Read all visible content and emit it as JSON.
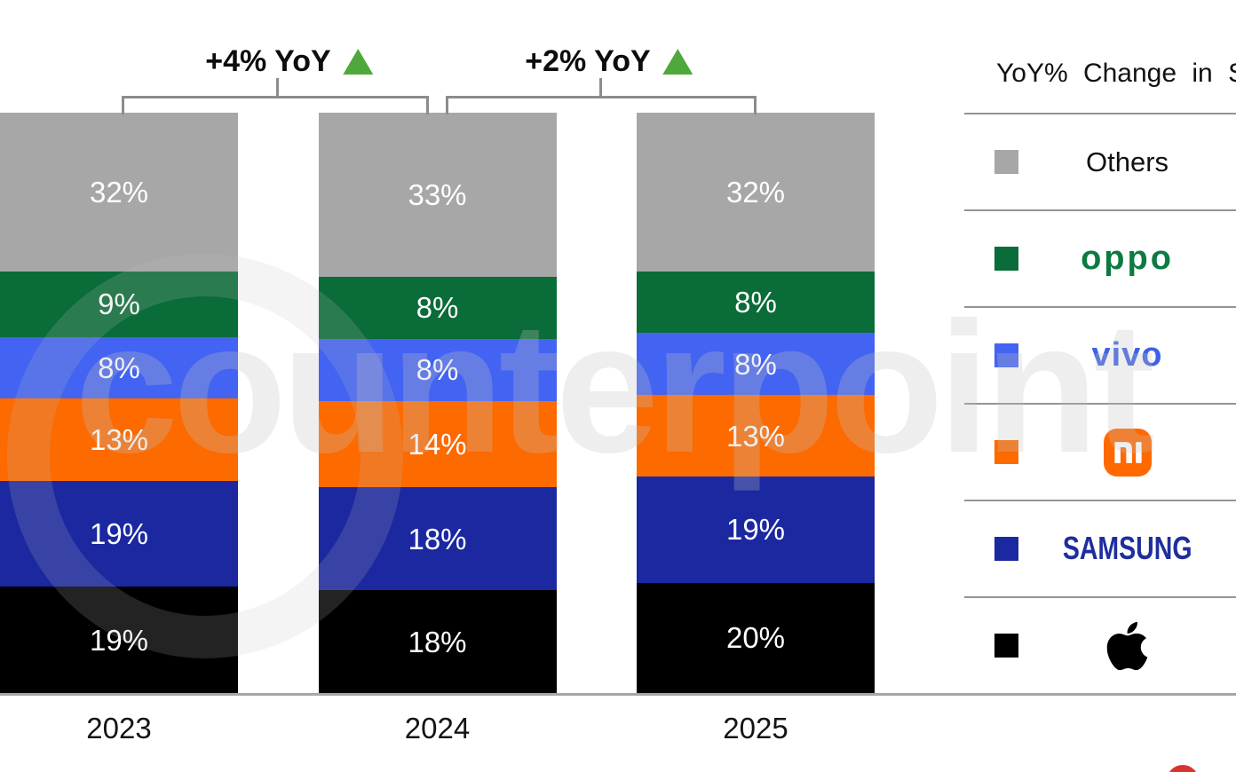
{
  "chart_data": {
    "type": "bar",
    "subtype": "stacked-100",
    "title": "",
    "categories": [
      "2023",
      "2024",
      "2025"
    ],
    "series": [
      {
        "name": "Apple",
        "color": "#000000",
        "values": [
          19,
          18,
          20
        ]
      },
      {
        "name": "Samsung",
        "color": "#1b28a0",
        "values": [
          19,
          18,
          19
        ]
      },
      {
        "name": "Xiaomi",
        "color": "#fc6a00",
        "values": [
          13,
          14,
          13
        ]
      },
      {
        "name": "vivo",
        "color": "#4363f2",
        "values": [
          8,
          8,
          8
        ]
      },
      {
        "name": "OPPO",
        "color": "#0a6c38",
        "values": [
          9,
          8,
          8
        ]
      },
      {
        "name": "Others",
        "color": "#a7a7a7",
        "values": [
          32,
          33,
          32
        ]
      }
    ],
    "value_suffix": "%",
    "stack_order_bottom_to_top": [
      "Apple",
      "Samsung",
      "Xiaomi",
      "vivo",
      "OPPO",
      "Others"
    ],
    "annotations": [
      {
        "label": "+4% YoY",
        "direction": "up",
        "between": [
          "2023",
          "2024"
        ]
      },
      {
        "label": "+2% YoY",
        "direction": "up",
        "between": [
          "2024",
          "2025"
        ]
      }
    ],
    "ylim": [
      0,
      100
    ],
    "grid": false,
    "legend_position": "right"
  },
  "legend": {
    "header": "YoY% Change in S",
    "rows": [
      {
        "name": "Others",
        "swatch": "#a7a7a7",
        "logo_kind": "text",
        "logo_text": "Others",
        "logo_color": "#111111"
      },
      {
        "name": "OPPO",
        "swatch": "#0a6c38",
        "logo_kind": "oppo",
        "logo_text": "oppo",
        "logo_color": "#0d7a42"
      },
      {
        "name": "vivo",
        "swatch": "#4363f2",
        "logo_kind": "vivo",
        "logo_text": "vivo",
        "logo_color": "#3d61e6"
      },
      {
        "name": "Xiaomi",
        "swatch": "#fc6a00",
        "logo_kind": "mi",
        "logo_text": "mi",
        "logo_color": "#ff6900"
      },
      {
        "name": "Samsung",
        "swatch": "#1b28a0",
        "logo_kind": "samsung",
        "logo_text": "SAMSUNG",
        "logo_color": "#1f2e9e"
      },
      {
        "name": "Apple",
        "swatch": "#000000",
        "logo_kind": "apple",
        "logo_text": "",
        "logo_color": "#000000"
      }
    ]
  },
  "watermark": {
    "text": "counterpoint"
  },
  "colors": {
    "arrow_up": "#4fa83c",
    "bracket": "#8c8c8c",
    "axis_line": "#a6a6a6",
    "watermark": "#c3c3c3",
    "red_corner_mark": "#d5352e",
    "bar_value_text": "#ffffff"
  }
}
